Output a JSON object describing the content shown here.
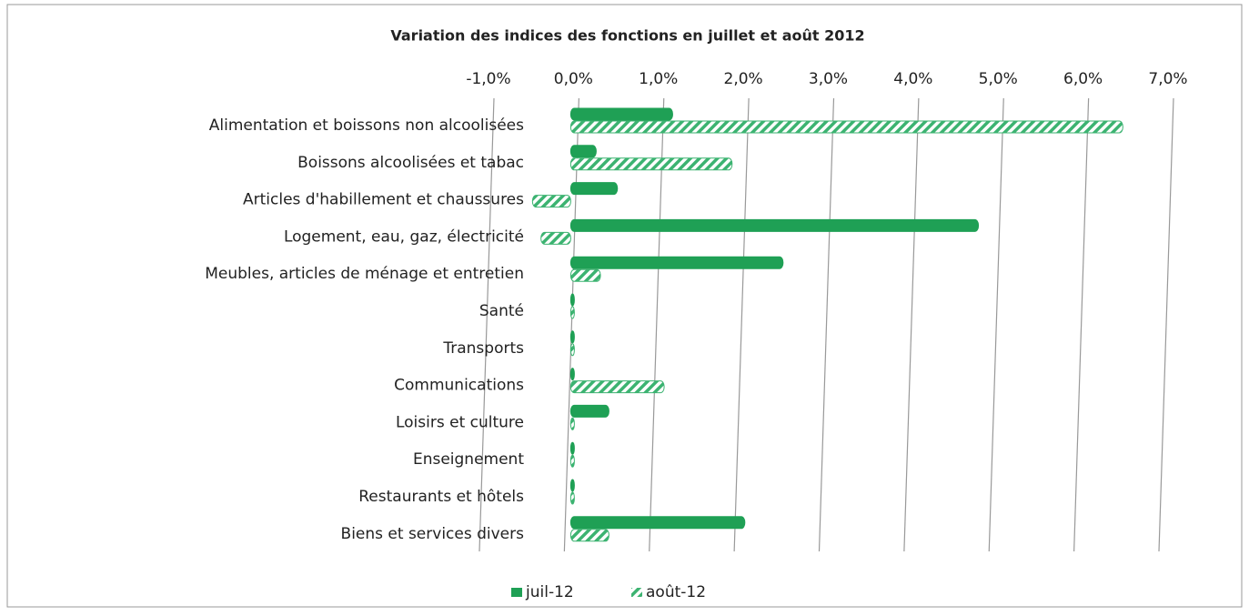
{
  "chart_data": {
    "type": "bar",
    "orientation": "horizontal",
    "title": "Variation des indices des fonctions en juillet et août 2012",
    "categories": [
      "Alimentation et boissons non alcoolisées",
      "Boissons alcoolisées et tabac",
      "Articles d'habillement et chaussures",
      "Logement, eau, gaz, électricité",
      "Meubles, articles de ménage et entretien",
      "Santé",
      "Transports",
      "Communications",
      "Loisirs et culture",
      "Enseignement",
      "Restaurants et hôtels",
      "Biens et services divers"
    ],
    "series": [
      {
        "name": "juil-12",
        "color": "#1fa055",
        "pattern": "solid",
        "values": [
          1.2,
          0.3,
          0.55,
          4.8,
          2.5,
          0,
          0,
          0,
          0.45,
          0,
          0,
          2.05
        ]
      },
      {
        "name": "août-12",
        "color": "#3cb371",
        "pattern": "hatched",
        "values": [
          6.5,
          1.9,
          -0.45,
          -0.35,
          0.35,
          0,
          0,
          1.1,
          0,
          0,
          0,
          0.45
        ]
      }
    ],
    "xlim": [
      -1,
      7
    ],
    "xticks": [
      {
        "value": -1,
        "label": "-1,0%"
      },
      {
        "value": 0,
        "label": "0,0%"
      },
      {
        "value": 1,
        "label": "1,0%"
      },
      {
        "value": 2,
        "label": "2,0%"
      },
      {
        "value": 3,
        "label": "3,0%"
      },
      {
        "value": 4,
        "label": "4,0%"
      },
      {
        "value": 5,
        "label": "5,0%"
      },
      {
        "value": 6,
        "label": "6,0%"
      },
      {
        "value": 7,
        "label": "7,0%"
      }
    ],
    "grid": true,
    "legend": "bottom"
  }
}
